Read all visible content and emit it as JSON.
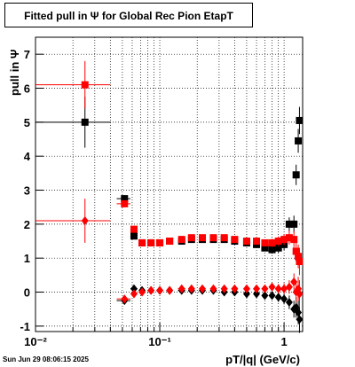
{
  "chart_data": {
    "type": "scatter",
    "title": "Fitted pull in  Ψ  for Global Rec Pion EtapT",
    "x_label": "pT/|q| (GeV/c)",
    "y_label": "pull in  Ψ",
    "timestamp": "Sun Jun 29 08:06:15 2025",
    "log_x": true,
    "grid": true,
    "xlim": [
      0.01,
      1.41
    ],
    "ylim": [
      -1.16,
      7.5
    ],
    "xticks": [
      {
        "value": 0.01,
        "label": "10⁻²"
      },
      {
        "value": 0.1,
        "label": "10⁻¹"
      },
      1
    ],
    "xminorticks": [
      0.02,
      0.03,
      0.04,
      0.05,
      0.06,
      0.07,
      0.08,
      0.09,
      0.2,
      0.3,
      0.4,
      0.5,
      0.6,
      0.7,
      0.8,
      0.9
    ],
    "yticks": [
      -1,
      0,
      1,
      2,
      3,
      4,
      5,
      6,
      7
    ],
    "x": [
      0.025,
      0.052,
      0.062,
      0.072,
      0.085,
      0.1,
      0.12,
      0.15,
      0.18,
      0.22,
      0.27,
      0.33,
      0.4,
      0.5,
      0.6,
      0.7,
      0.8,
      0.9,
      1.0,
      1.1,
      1.2,
      1.25,
      1.3,
      1.33
    ],
    "x_low": [
      0.01,
      0.045,
      0.058,
      0.068,
      0.08,
      0.095,
      0.115,
      0.14,
      0.17,
      0.21,
      0.26,
      0.32,
      0.38,
      0.48,
      0.58,
      0.68,
      0.78,
      0.88,
      0.98,
      1.08,
      1.18,
      1.23,
      1.28,
      1.32
    ],
    "x_high": [
      0.04,
      0.058,
      0.066,
      0.076,
      0.09,
      0.105,
      0.125,
      0.16,
      0.19,
      0.23,
      0.28,
      0.34,
      0.42,
      0.52,
      0.62,
      0.72,
      0.82,
      0.92,
      1.02,
      1.12,
      1.22,
      1.27,
      1.32,
      1.34
    ],
    "series": [
      {
        "color": "#000000",
        "marker": "square",
        "values": [
          5.0,
          2.75,
          1.65,
          1.45,
          1.45,
          1.45,
          1.5,
          1.5,
          1.55,
          1.55,
          1.55,
          1.55,
          1.5,
          1.45,
          1.4,
          1.3,
          1.25,
          1.3,
          1.4,
          2.0,
          2.0,
          3.45,
          4.45,
          5.05
        ],
        "yerr": [
          0.75,
          0.1,
          0.08,
          0.05,
          0.04,
          0.04,
          0.04,
          0.04,
          0.04,
          0.04,
          0.04,
          0.04,
          0.05,
          0.06,
          0.08,
          0.1,
          0.12,
          0.14,
          0.16,
          0.2,
          0.25,
          0.3,
          0.35,
          0.4
        ]
      },
      {
        "color": "#ff0000",
        "marker": "square",
        "values": [
          6.1,
          2.6,
          1.85,
          1.45,
          1.45,
          1.45,
          1.5,
          1.55,
          1.6,
          1.6,
          1.6,
          1.6,
          1.55,
          1.5,
          1.5,
          1.45,
          1.45,
          1.5,
          1.55,
          1.6,
          1.55,
          1.2,
          1.05,
          0.9
        ],
        "yerr": [
          0.7,
          0.1,
          0.08,
          0.05,
          0.04,
          0.04,
          0.04,
          0.04,
          0.04,
          0.04,
          0.04,
          0.04,
          0.05,
          0.06,
          0.08,
          0.1,
          0.12,
          0.14,
          0.16,
          0.2,
          0.25,
          0.3,
          0.35,
          0.4
        ]
      },
      {
        "color": "#000000",
        "marker": "diamond",
        "values": [
          null,
          -0.25,
          0.1,
          0.05,
          0.05,
          0.05,
          0.05,
          0.05,
          0.05,
          0.05,
          0.05,
          0.0,
          0.0,
          -0.05,
          -0.05,
          -0.1,
          -0.1,
          -0.15,
          -0.2,
          -0.3,
          -0.5,
          -0.45,
          -0.6,
          -0.8
        ],
        "yerr": [
          null,
          0.08,
          0.06,
          0.04,
          0.04,
          0.04,
          0.04,
          0.04,
          0.04,
          0.04,
          0.04,
          0.04,
          0.05,
          0.06,
          0.08,
          0.1,
          0.12,
          0.14,
          0.16,
          0.2,
          0.25,
          0.3,
          0.35,
          0.4
        ]
      },
      {
        "color": "#ff0000",
        "marker": "diamond",
        "values": [
          2.1,
          -0.2,
          -0.05,
          0.0,
          0.05,
          0.05,
          0.05,
          0.1,
          0.1,
          0.1,
          0.1,
          0.1,
          0.1,
          0.1,
          0.1,
          0.1,
          0.15,
          0.1,
          0.1,
          0.15,
          0.3,
          0.0,
          0.1,
          -0.05
        ],
        "yerr": [
          0.65,
          0.08,
          0.06,
          0.04,
          0.04,
          0.04,
          0.04,
          0.04,
          0.04,
          0.04,
          0.04,
          0.04,
          0.05,
          0.06,
          0.08,
          0.1,
          0.12,
          0.14,
          0.16,
          0.2,
          0.25,
          0.3,
          0.35,
          0.4
        ]
      }
    ]
  }
}
